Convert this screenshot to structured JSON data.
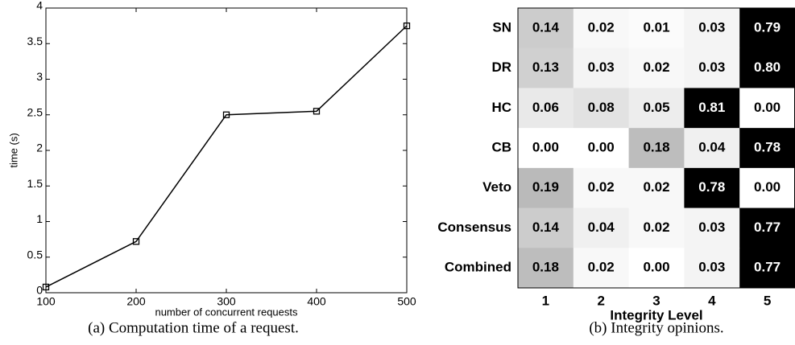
{
  "chart_data": [
    {
      "type": "line",
      "x": [
        100,
        200,
        300,
        400,
        500
      ],
      "values": [
        0.08,
        0.72,
        2.5,
        2.55,
        3.75
      ],
      "color": "#000000",
      "xlim": [
        100,
        500
      ],
      "xticks": [
        100,
        200,
        300,
        400,
        500
      ],
      "ylim": [
        0,
        4
      ],
      "yticks": [
        0,
        0.5,
        1,
        1.5,
        2,
        2.5,
        3,
        3.5,
        4
      ],
      "x_label": "number of concurrent requests",
      "y_label": "time (s)",
      "caption": "(a) Computation time of a request."
    },
    {
      "type": "heatmap",
      "rows": [
        "SN",
        "DR",
        "HC",
        "CB",
        "Veto",
        "Consensus",
        "Combined"
      ],
      "categories": [
        "1",
        "2",
        "3",
        "4",
        "5"
      ],
      "x_label": "Integrity Level",
      "values": [
        [
          0.14,
          0.02,
          0.01,
          0.03,
          0.79
        ],
        [
          0.13,
          0.03,
          0.02,
          0.03,
          0.8
        ],
        [
          0.06,
          0.08,
          0.05,
          0.81,
          0
        ],
        [
          0,
          0,
          0.18,
          0.04,
          0.78
        ],
        [
          0.19,
          0.02,
          0.02,
          0.78,
          0
        ],
        [
          0.14,
          0.04,
          0.02,
          0.03,
          0.77
        ],
        [
          0.18,
          0.02,
          0,
          0.03,
          0.77
        ]
      ],
      "value_labels": [
        [
          "0.14",
          "0.02",
          "0.01",
          "0.03",
          "0.79"
        ],
        [
          "0.13",
          "0.03",
          "0.02",
          "0.03",
          "0.80"
        ],
        [
          "0.06",
          "0.08",
          "0.05",
          "0.81",
          "0.00"
        ],
        [
          "0.00",
          "0.00",
          "0.18",
          "0.04",
          "0.78"
        ],
        [
          "0.19",
          "0.02",
          "0.02",
          "0.78",
          "0.00"
        ],
        [
          "0.14",
          "0.04",
          "0.02",
          "0.03",
          "0.77"
        ],
        [
          "0.18",
          "0.02",
          "0.00",
          "0.03",
          "0.77"
        ]
      ],
      "caption": "(b) Integrity opinions."
    }
  ]
}
